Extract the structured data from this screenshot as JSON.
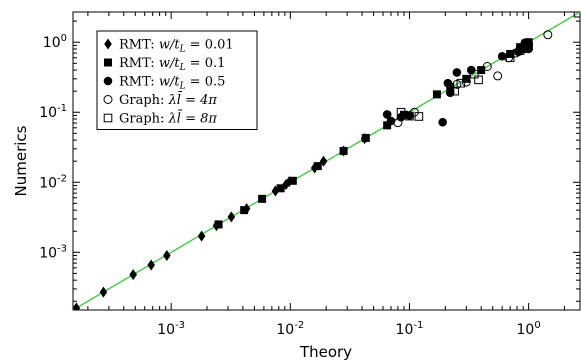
{
  "chart_data": {
    "type": "scatter",
    "xlabel": "Theory",
    "ylabel": "Numerics",
    "xscale": "log",
    "yscale": "log",
    "xlim": [
      0.00015,
      2.7
    ],
    "ylim": [
      0.00015,
      2.7
    ],
    "xticks": [
      {
        "value": 0.001,
        "base": "10",
        "exp": "-3"
      },
      {
        "value": 0.01,
        "base": "10",
        "exp": "-2"
      },
      {
        "value": 0.1,
        "base": "10",
        "exp": "-1"
      },
      {
        "value": 1,
        "base": "10",
        "exp": "0"
      }
    ],
    "yticks": [
      {
        "value": 0.001,
        "base": "10",
        "exp": "-3"
      },
      {
        "value": 0.01,
        "base": "10",
        "exp": "-2"
      },
      {
        "value": 0.1,
        "base": "10",
        "exp": "-1"
      },
      {
        "value": 1,
        "base": "10",
        "exp": "0"
      }
    ],
    "reference_line": {
      "type": "y=x",
      "color": "#33cc33"
    },
    "legend_position": "top-left",
    "series": [
      {
        "name": "RMT: w/t_L = 0.01",
        "legend_label": {
          "prefix": "RMT: ",
          "lhs": "w/t",
          "sub": "L",
          "rhs": " = 0.01"
        },
        "marker": "diamond-filled",
        "points": [
          [
            0.00016,
            0.00016
          ],
          [
            0.00027,
            0.00027
          ],
          [
            0.00048,
            0.00048
          ],
          [
            0.00068,
            0.00066
          ],
          [
            0.00092,
            0.0009
          ],
          [
            0.0018,
            0.0017
          ],
          [
            0.0024,
            0.0024
          ],
          [
            0.0032,
            0.0032
          ],
          [
            0.0043,
            0.0042
          ],
          [
            0.0075,
            0.0075
          ],
          [
            0.0092,
            0.0093
          ],
          [
            0.0098,
            0.0102
          ],
          [
            0.016,
            0.016
          ],
          [
            0.019,
            0.02
          ],
          [
            0.028,
            0.028
          ],
          [
            0.042,
            0.042
          ]
        ]
      },
      {
        "name": "RMT: w/t_L = 0.1",
        "legend_label": {
          "prefix": "RMT: ",
          "lhs": "w/t",
          "sub": "L",
          "rhs": " = 0.1"
        },
        "marker": "square-filled",
        "points": [
          [
            0.0025,
            0.0025
          ],
          [
            0.0041,
            0.004
          ],
          [
            0.0058,
            0.0058
          ],
          [
            0.0083,
            0.0082
          ],
          [
            0.0105,
            0.0105
          ],
          [
            0.017,
            0.017
          ],
          [
            0.028,
            0.028
          ],
          [
            0.043,
            0.043
          ],
          [
            0.065,
            0.065
          ],
          [
            0.09,
            0.092
          ],
          [
            0.17,
            0.18
          ],
          [
            0.22,
            0.23
          ],
          [
            0.3,
            0.3
          ],
          [
            0.4,
            0.4
          ],
          [
            0.7,
            0.68
          ],
          [
            0.85,
            0.85
          ],
          [
            1.0,
            1.0
          ]
        ]
      },
      {
        "name": "RMT: w/t_L = 0.5",
        "legend_label": {
          "prefix": "RMT: ",
          "lhs": "w/t",
          "sub": "L",
          "rhs": " = 0.5"
        },
        "marker": "circle-filled",
        "points": [
          [
            0.065,
            0.093
          ],
          [
            0.07,
            0.075
          ],
          [
            0.085,
            0.085
          ],
          [
            0.1,
            0.09
          ],
          [
            0.19,
            0.072
          ],
          [
            0.21,
            0.26
          ],
          [
            0.22,
            0.19
          ],
          [
            0.25,
            0.37
          ],
          [
            0.33,
            0.4
          ],
          [
            0.6,
            0.63
          ],
          [
            0.82,
            0.73
          ],
          [
            0.88,
            0.82
          ],
          [
            0.93,
            0.98
          ],
          [
            1.0,
            0.8
          ]
        ]
      },
      {
        "name": "Graph: λl̄ = 4π",
        "legend_label": {
          "prefix": "Graph: ",
          "math": "λl̄ = 4π"
        },
        "marker": "circle-open",
        "points": [
          [
            0.08,
            0.071
          ],
          [
            0.11,
            0.1
          ],
          [
            0.25,
            0.25
          ],
          [
            0.3,
            0.27
          ],
          [
            0.45,
            0.45
          ],
          [
            0.55,
            0.33
          ],
          [
            0.68,
            0.6
          ],
          [
            0.78,
            0.7
          ],
          [
            0.83,
            0.74
          ],
          [
            0.9,
            0.84
          ],
          [
            1.0,
            0.93
          ],
          [
            1.45,
            1.28
          ]
        ]
      },
      {
        "name": "Graph: λl̄ = 8π",
        "legend_label": {
          "prefix": "Graph: ",
          "math": "λl̄ = 8π"
        },
        "marker": "square-open",
        "points": [
          [
            0.085,
            0.1
          ],
          [
            0.12,
            0.087
          ],
          [
            0.1,
            0.088
          ],
          [
            0.24,
            0.2
          ],
          [
            0.27,
            0.26
          ],
          [
            0.35,
            0.35
          ],
          [
            0.38,
            0.29
          ],
          [
            0.7,
            0.6
          ],
          [
            0.85,
            0.76
          ],
          [
            0.92,
            0.81
          ],
          [
            1.0,
            0.88
          ],
          [
            2.6,
            2.6
          ]
        ]
      }
    ]
  }
}
